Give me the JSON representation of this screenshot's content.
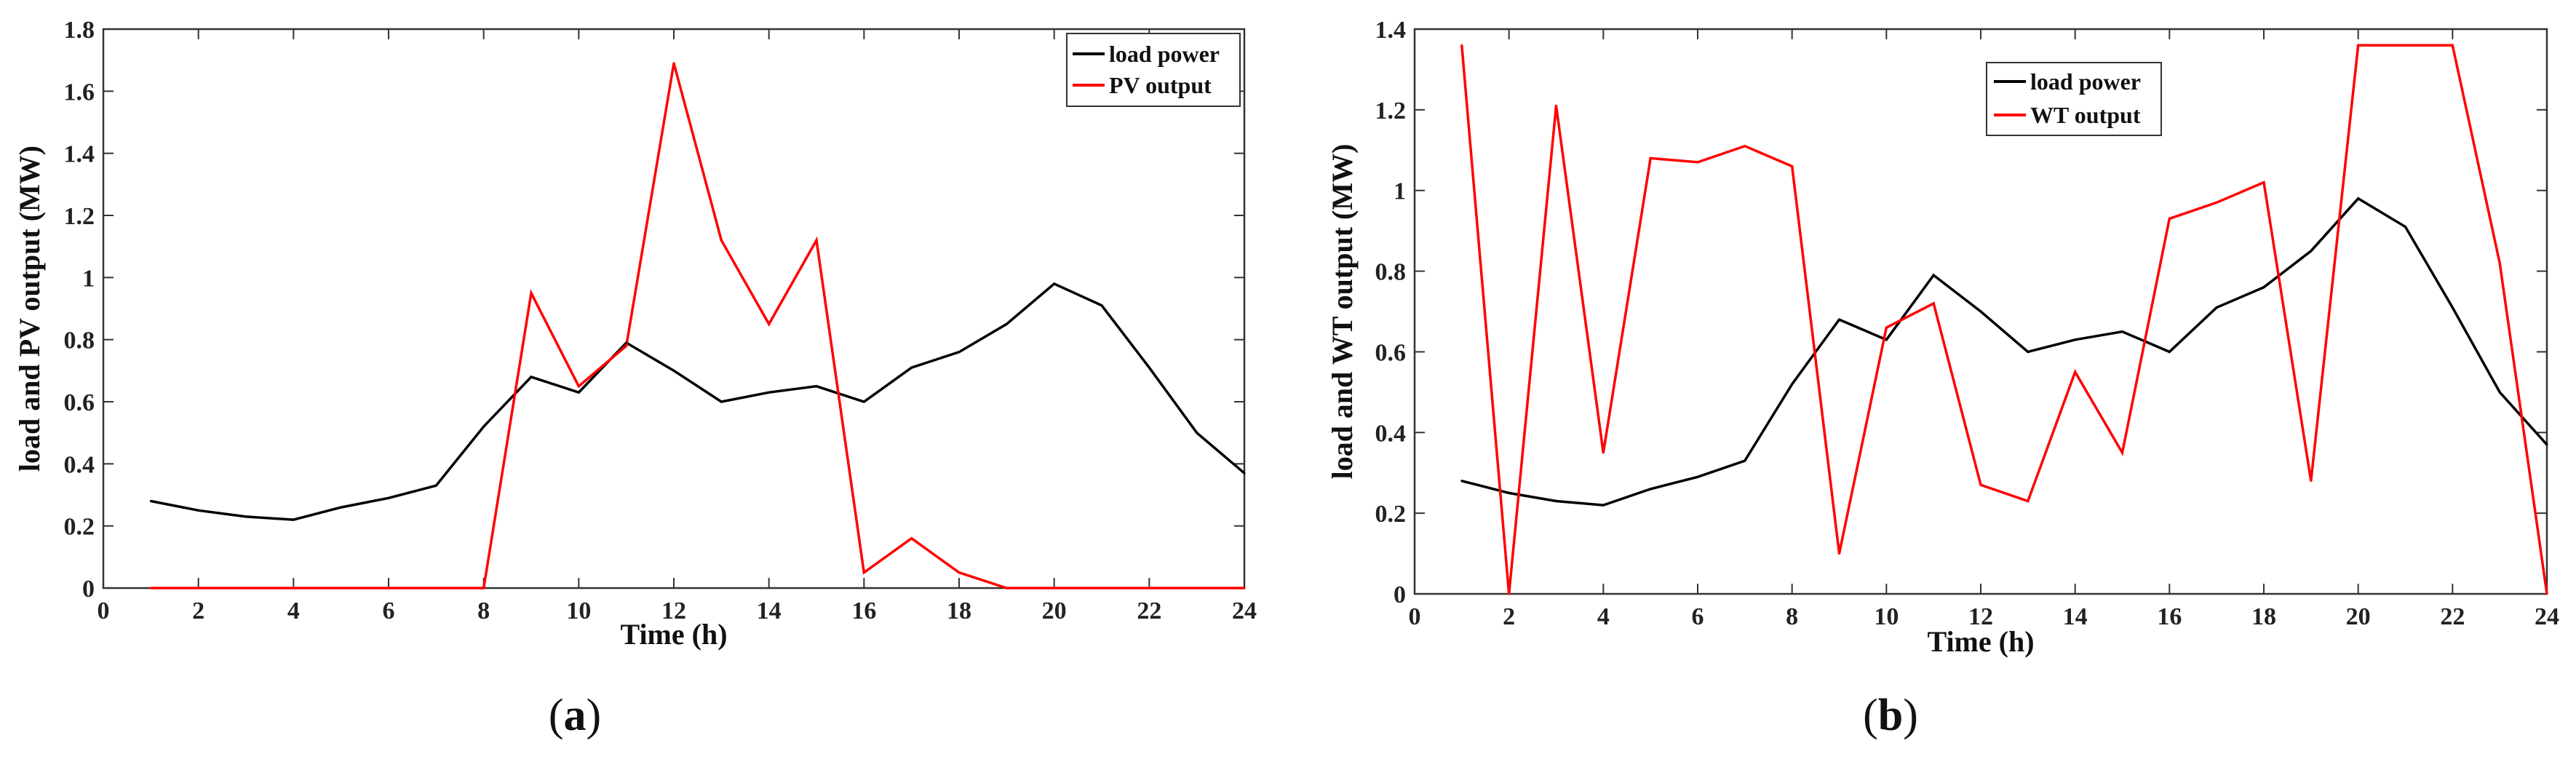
{
  "chart_data": [
    {
      "id": "a",
      "type": "line",
      "panel_label": "(a)",
      "panel_open": "(",
      "panel_letter": "a",
      "panel_close": ")",
      "title": "",
      "xlabel": "Time (h)",
      "ylabel": "load and PV output (MW)",
      "xlim": [
        0,
        24
      ],
      "ylim": [
        0,
        1.8
      ],
      "xticks": [
        0,
        2,
        4,
        6,
        8,
        10,
        12,
        14,
        16,
        18,
        20,
        22,
        24
      ],
      "xtick_labels": [
        "0",
        "2",
        "4",
        "6",
        "8",
        "10",
        "12",
        "14",
        "16",
        "18",
        "20",
        "22",
        "24"
      ],
      "yticks": [
        0,
        0.2,
        0.4,
        0.6,
        0.8,
        1,
        1.2,
        1.4,
        1.6,
        1.8
      ],
      "ytick_labels": [
        "0",
        "0.2",
        "0.4",
        "0.6",
        "0.8",
        "1",
        "1.2",
        "1.4",
        "1.6",
        "1.8"
      ],
      "legend_position": "top-right",
      "series": [
        {
          "name": "load power",
          "color": "#000000",
          "x": [
            1,
            2,
            3,
            4,
            5,
            6,
            7,
            8,
            9,
            10,
            11,
            12,
            13,
            14,
            15,
            16,
            17,
            18,
            19,
            20,
            21,
            22,
            23,
            24
          ],
          "values": [
            0.28,
            0.25,
            0.23,
            0.22,
            0.26,
            0.29,
            0.33,
            0.52,
            0.68,
            0.63,
            0.79,
            0.7,
            0.6,
            0.63,
            0.65,
            0.6,
            0.71,
            0.76,
            0.85,
            0.98,
            0.91,
            0.71,
            0.5,
            0.37
          ]
        },
        {
          "name": "PV output",
          "color": "#ff0000",
          "x": [
            1,
            2,
            3,
            4,
            5,
            6,
            7,
            8,
            9,
            10,
            11,
            12,
            13,
            14,
            15,
            16,
            17,
            18,
            19,
            20,
            21,
            22,
            23,
            24
          ],
          "values": [
            0,
            0,
            0,
            0,
            0,
            0,
            0,
            0,
            0.95,
            0.65,
            0.78,
            1.69,
            1.12,
            0.85,
            1.12,
            0.05,
            0.16,
            0.05,
            0,
            0,
            0,
            0,
            0,
            0
          ]
        }
      ]
    },
    {
      "id": "b",
      "type": "line",
      "panel_label": "(b)",
      "panel_open": "(",
      "panel_letter": "b",
      "panel_close": ")",
      "title": "",
      "xlabel": "Time (h)",
      "ylabel": "load and WT output (MW)",
      "xlim": [
        0,
        24
      ],
      "ylim": [
        0,
        1.4
      ],
      "xticks": [
        0,
        2,
        4,
        6,
        8,
        10,
        12,
        14,
        16,
        18,
        20,
        22,
        24
      ],
      "xtick_labels": [
        "0",
        "2",
        "4",
        "6",
        "8",
        "10",
        "12",
        "14",
        "16",
        "18",
        "20",
        "22",
        "24"
      ],
      "yticks": [
        0,
        0.2,
        0.4,
        0.6,
        0.8,
        1,
        1.2,
        1.4
      ],
      "ytick_labels": [
        "0",
        "0.2",
        "0.4",
        "0.6",
        "0.8",
        "1",
        "1.2",
        "1.4"
      ],
      "legend_position": "top-center-right",
      "series": [
        {
          "name": "load power",
          "color": "#000000",
          "x": [
            1,
            2,
            3,
            4,
            5,
            6,
            7,
            8,
            9,
            10,
            11,
            12,
            13,
            14,
            15,
            16,
            17,
            18,
            19,
            20,
            21,
            22,
            23,
            24
          ],
          "values": [
            0.28,
            0.25,
            0.23,
            0.22,
            0.26,
            0.29,
            0.33,
            0.52,
            0.68,
            0.63,
            0.79,
            0.7,
            0.6,
            0.63,
            0.65,
            0.6,
            0.71,
            0.76,
            0.85,
            0.98,
            0.91,
            0.71,
            0.5,
            0.37
          ]
        },
        {
          "name": "WT output",
          "color": "#ff0000",
          "x": [
            1,
            2,
            3,
            4,
            5,
            6,
            7,
            8,
            9,
            10,
            11,
            12,
            13,
            14,
            15,
            16,
            17,
            18,
            19,
            20,
            21,
            22,
            23,
            24
          ],
          "values": [
            1.36,
            0,
            1.21,
            0.35,
            1.08,
            1.07,
            1.11,
            1.06,
            0.1,
            0.66,
            0.72,
            0.27,
            0.23,
            0.55,
            0.35,
            0.93,
            0.97,
            1.02,
            0.28,
            1.36,
            1.36,
            1.36,
            0.82,
            0
          ]
        }
      ]
    }
  ]
}
